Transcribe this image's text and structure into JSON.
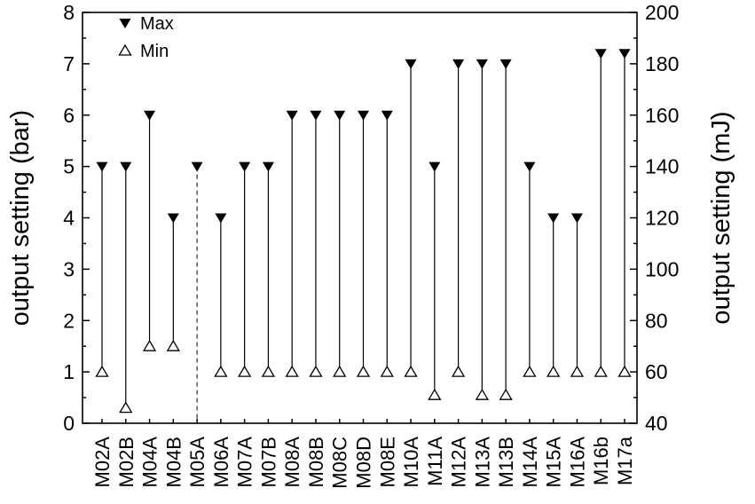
{
  "figure": {
    "background": "#ffffff",
    "foreground": "#000000"
  },
  "legend": {
    "position": "top-left-inside",
    "items": [
      {
        "symbol": "filled-down-triangle",
        "label": "Max"
      },
      {
        "symbol": "open-up-triangle",
        "label": "Min"
      }
    ]
  },
  "chart_data": {
    "type": "scatter",
    "subtype": "min-max-range-drop-lines",
    "title": "",
    "grid": false,
    "legend_position": "top-left-inside",
    "left_axis": {
      "label": "output setting (bar)",
      "range": [
        0,
        8
      ],
      "major_tick": 1,
      "minor_tick": 0.5
    },
    "right_axis": {
      "label": "output setting (mJ)",
      "range": [
        40,
        200
      ],
      "major_tick": 20,
      "minor_tick": 10
    },
    "categories": [
      "M02A",
      "M02B",
      "M04A",
      "M04B",
      "M05A",
      "M06A",
      "M07A",
      "M07B",
      "M08A",
      "M08B",
      "M08C",
      "M08D",
      "M08E",
      "M10A",
      "M11A",
      "M12A",
      "M13A",
      "M13B",
      "M14A",
      "M15A",
      "M16A",
      "M16b",
      "M17a"
    ],
    "series": [
      {
        "name": "Max",
        "marker": "filled-down-triangle",
        "values": [
          5,
          5,
          6,
          4,
          5,
          4,
          5,
          5,
          6,
          6,
          6,
          6,
          6,
          7,
          5,
          7,
          7,
          7,
          5,
          4,
          4,
          7.2,
          7.2
        ]
      },
      {
        "name": "Min",
        "marker": "open-up-triangle",
        "values": [
          1,
          0.3,
          1.5,
          1.5,
          null,
          1,
          1,
          1,
          1,
          1,
          1,
          1,
          1,
          1,
          0.55,
          1,
          0.55,
          0.55,
          1,
          1,
          1,
          1,
          1
        ]
      }
    ],
    "connectors": "vertical solid line from min marker to max marker for each category",
    "special": {
      "category": "M05A",
      "style": "dashed vertical line from max marker down to the bottom axis; no min marker shown"
    }
  }
}
